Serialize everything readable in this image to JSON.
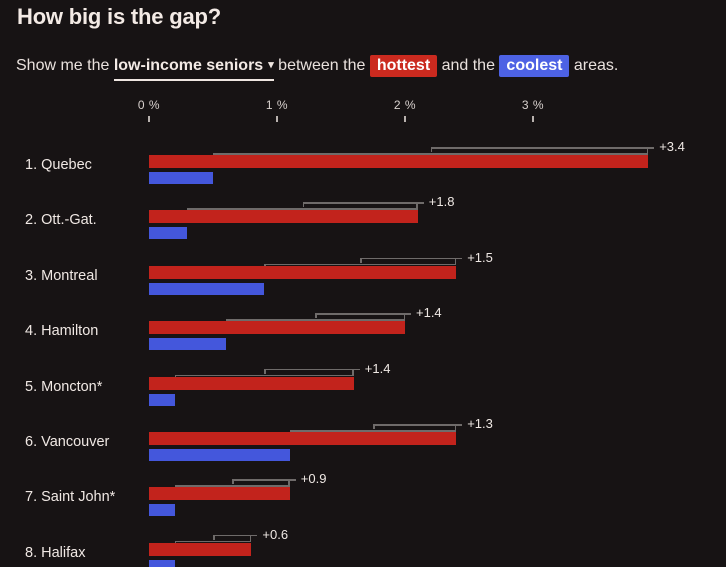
{
  "header": {
    "title": "How big is the gap?"
  },
  "subtitle": {
    "prefix": "Show me the ",
    "dropdown_label": "low-income seniors",
    "dropdown_arrow": "▾",
    "middle": " between the ",
    "hot_label": "hottest",
    "mid2": " and the ",
    "cool_label": "coolest",
    "suffix": " areas."
  },
  "colors": {
    "background": "#171314",
    "hottest_bar": "#c2231c",
    "coolest_bar": "#4457dc",
    "hottest_chip": "#cb2a1f",
    "coolest_chip": "#4d62e4",
    "bracket": "#6f6b6a",
    "text": "#f0e8e4"
  },
  "chart_data": {
    "type": "bar",
    "orientation": "horizontal",
    "title": "How big is the gap?",
    "unit": "%",
    "x_axis": {
      "ticks": [
        {
          "value": 0,
          "label": "0 %"
        },
        {
          "value": 1,
          "label": "1 %"
        },
        {
          "value": 2,
          "label": "2 %"
        },
        {
          "value": 3,
          "label": "3 %"
        }
      ],
      "range": [
        0,
        4.5
      ],
      "grid": false
    },
    "series_names": [
      "hottest",
      "coolest"
    ],
    "legend_position": "in-sentence-chips",
    "rows": [
      {
        "label": "1. Quebec",
        "hottest": 3.9,
        "coolest": 0.5,
        "gap": "+3.4"
      },
      {
        "label": "2. Ott.-Gat.",
        "hottest": 2.1,
        "coolest": 0.3,
        "gap": "+1.8"
      },
      {
        "label": "3. Montreal",
        "hottest": 2.4,
        "coolest": 0.9,
        "gap": "+1.5"
      },
      {
        "label": "4. Hamilton",
        "hottest": 2.0,
        "coolest": 0.6,
        "gap": "+1.4"
      },
      {
        "label": "5. Moncton*",
        "hottest": 1.6,
        "coolest": 0.2,
        "gap": "+1.4"
      },
      {
        "label": "6. Vancouver",
        "hottest": 2.4,
        "coolest": 1.1,
        "gap": "+1.3"
      },
      {
        "label": "7. Saint John*",
        "hottest": 1.1,
        "coolest": 0.2,
        "gap": "+0.9"
      },
      {
        "label": "8. Halifax",
        "hottest": 0.8,
        "coolest": 0.2,
        "gap": "+0.6"
      }
    ]
  }
}
